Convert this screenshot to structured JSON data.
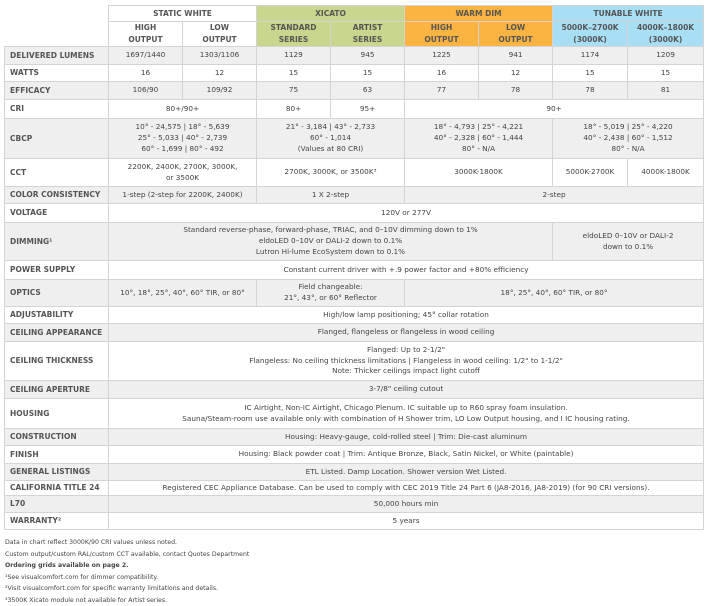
{
  "colors": {
    "static": "#ffffff",
    "xicato": "#c9d68d",
    "warm_dim": "#fbb441",
    "tunable": "#a9dff5",
    "row_alt": "#efefef"
  },
  "header": {
    "groups": [
      {
        "label": "STATIC WHITE",
        "span": 2,
        "color": "#ffffff"
      },
      {
        "label": "XICATO",
        "span": 2,
        "color": "#c9d68d"
      },
      {
        "label": "WARM DIM",
        "span": 2,
        "color": "#fbb441"
      },
      {
        "label": "TUNABLE WHITE",
        "span": 2,
        "color": "#a9dff5"
      }
    ],
    "subs": [
      {
        "label": "HIGH\nOUTPUT",
        "color": "#ffffff"
      },
      {
        "label": "LOW\nOUTPUT",
        "color": "#ffffff"
      },
      {
        "label": "STANDARD\nSERIES",
        "color": "#c9d68d"
      },
      {
        "label": "ARTIST\nSERIES",
        "color": "#c9d68d"
      },
      {
        "label": "HIGH\nOUTPUT",
        "color": "#fbb441"
      },
      {
        "label": "LOW\nOUTPUT",
        "color": "#fbb441"
      },
      {
        "label": "5000K–2700K\n(3000K)",
        "color": "#a9dff5"
      },
      {
        "label": "4000K–1800K\n(3000K)",
        "color": "#a9dff5"
      }
    ]
  },
  "rows": [
    {
      "label": "DELIVERED LUMENS",
      "cells": [
        {
          "t": "1697/1440"
        },
        {
          "t": "1303/1106"
        },
        {
          "t": "1129"
        },
        {
          "t": "945"
        },
        {
          "t": "1225"
        },
        {
          "t": "941"
        },
        {
          "t": "1174"
        },
        {
          "t": "1209"
        }
      ]
    },
    {
      "label": "WATTS",
      "cells": [
        {
          "t": "16"
        },
        {
          "t": "12"
        },
        {
          "t": "15"
        },
        {
          "t": "15"
        },
        {
          "t": "16"
        },
        {
          "t": "12"
        },
        {
          "t": "15"
        },
        {
          "t": "15"
        }
      ]
    },
    {
      "label": "EFFICACY",
      "cells": [
        {
          "t": "106/90"
        },
        {
          "t": "109/92"
        },
        {
          "t": "75"
        },
        {
          "t": "63"
        },
        {
          "t": "77"
        },
        {
          "t": "78"
        },
        {
          "t": "78"
        },
        {
          "t": "81"
        }
      ]
    },
    {
      "label": "CRI",
      "cells": [
        {
          "t": "80+/90+",
          "s": 2
        },
        {
          "t": "80+"
        },
        {
          "t": "95+"
        },
        {
          "t": "90+",
          "s": 4
        }
      ]
    },
    {
      "label": "CBCP",
      "cells": [
        {
          "t": "10° - 24,575 | 18° - 5,639\n25° - 5,033 | 40° - 2,739\n60° - 1,699 | 80° - 492",
          "s": 2
        },
        {
          "t": "21° - 3,184 | 43° - 2,733\n60° - 1,014\n(Values at 80 CRI)",
          "s": 2
        },
        {
          "t": "18° - 4,793 | 25° - 4,221\n40° - 2,328 | 60° - 1,444\n80° - N/A",
          "s": 2
        },
        {
          "t": "18° - 5,019 | 25° - 4,220\n40° - 2,438 | 60° - 1,512\n80° - N/A",
          "s": 2
        }
      ]
    },
    {
      "label": "CCT",
      "cells": [
        {
          "t": "2200K, 2400K, 2700K, 3000K,\nor 3500K",
          "s": 2
        },
        {
          "t": "2700K, 3000K, or 3500K³",
          "s": 2
        },
        {
          "t": "3000K-1800K",
          "s": 2
        },
        {
          "t": "5000K-2700K"
        },
        {
          "t": "4000K-1800K"
        }
      ]
    },
    {
      "label": "COLOR CONSISTENCY",
      "cells": [
        {
          "t": "1-step (2-step for 2200K, 2400K)",
          "s": 2
        },
        {
          "t": "1 X 2-step",
          "s": 2
        },
        {
          "t": "2-step",
          "s": 4
        }
      ]
    },
    {
      "label": "VOLTAGE",
      "cells": [
        {
          "t": "120V or 277V",
          "s": 8
        }
      ]
    },
    {
      "label": "DIMMING¹",
      "cells": [
        {
          "t": "Standard reverse-phase, forward-phase, TRIAC, and 0–10V dimming down to 1%\neldoLED 0–10V or DALI-2 down to 0.1%\nLutron Hi-lume EcoSystem down to 0.1%",
          "s": 6
        },
        {
          "t": "eldoLED 0–10V or DALI-2\ndown to 0.1%",
          "s": 2
        }
      ]
    },
    {
      "label": "POWER SUPPLY",
      "cells": [
        {
          "t": "Constant current driver with +.9 power factor and +80% efficiency",
          "s": 8
        }
      ]
    },
    {
      "label": "OPTICS",
      "cells": [
        {
          "t": "10°, 18°, 25°, 40°, 60° TIR, or 80°",
          "s": 2
        },
        {
          "t": "Field changeable:\n21°, 43°, or 60° Reflector",
          "s": 2
        },
        {
          "t": "18°, 25°, 40°, 60° TIR, or 80°",
          "s": 4
        }
      ]
    },
    {
      "label": "ADJUSTABILITY",
      "cells": [
        {
          "t": "High/low lamp positioning; 45° collar rotation",
          "s": 8
        }
      ]
    },
    {
      "label": "CEILING APPEARANCE",
      "cells": [
        {
          "t": "Flanged, flangeless or flangeless in wood ceiling",
          "s": 8
        }
      ]
    },
    {
      "label": "CEILING THICKNESS",
      "cells": [
        {
          "t": "Flanged: Up to 2-1/2\"\nFlangeless: No ceiling thickness limitations | Flangeless in wood ceiling: 1/2\" to 1-1/2\"\nNote: Thicker ceilings impact light cutoff",
          "s": 8
        }
      ]
    },
    {
      "label": "CEILING APERTURE",
      "cells": [
        {
          "t": "3-7/8\" ceiling cutout",
          "s": 8
        }
      ]
    },
    {
      "label": "HOUSING",
      "cells": [
        {
          "t": "IC Airtight, Non-IC Airtight, Chicago Plenum. IC suitable up to R60 spray foam insulation.\nSauna/Steam-room use available only with combination of H Shower trim, LO Low Output housing, and I IC housing rating.",
          "s": 8
        }
      ]
    },
    {
      "label": "CONSTRUCTION",
      "cells": [
        {
          "t": "Housing: Heavy-gauge, cold-rolled steel | Trim: Die-cast aluminum",
          "s": 8
        }
      ]
    },
    {
      "label": "FINISH",
      "cells": [
        {
          "t": "Housing: Black powder coat | Trim: Antique Bronze, Black, Satin Nickel, or White (paintable)",
          "s": 8
        }
      ]
    },
    {
      "label": "GENERAL LISTINGS",
      "cells": [
        {
          "t": "ETL Listed. Damp Location. Shower version Wet Listed.",
          "s": 8
        }
      ]
    },
    {
      "label": "CALIFORNIA TITLE 24",
      "cells": [
        {
          "t": "Registered CEC Appliance Database. Can be used to comply with CEC 2019 Title 24 Part 6 (JA8-2016, JA8-2019) (for 90 CRI versions).",
          "s": 8
        }
      ]
    },
    {
      "label": "L70",
      "cells": [
        {
          "t": "50,000 hours min",
          "s": 8
        }
      ]
    },
    {
      "label": "WARRANTY²",
      "cells": [
        {
          "t": "5 years",
          "s": 8
        }
      ]
    }
  ],
  "notes": [
    {
      "t": "Data in chart reflect 3000K/90 CRI values unless noted.",
      "bold": false
    },
    {
      "t": "Custom output/custom RAL/custom CCT available, contact Quotes Department",
      "bold": false
    },
    {
      "t": "Ordering grids available on page 2.",
      "bold": true
    },
    {
      "t": "¹See visualcomfort.com for dimmer compatibility.",
      "bold": false
    },
    {
      "t": "²Visit visualcomfort.com for specific warranty limitations and details.",
      "bold": false
    },
    {
      "t": "³3500K Xicato module not available for Artist series.",
      "bold": false
    }
  ]
}
